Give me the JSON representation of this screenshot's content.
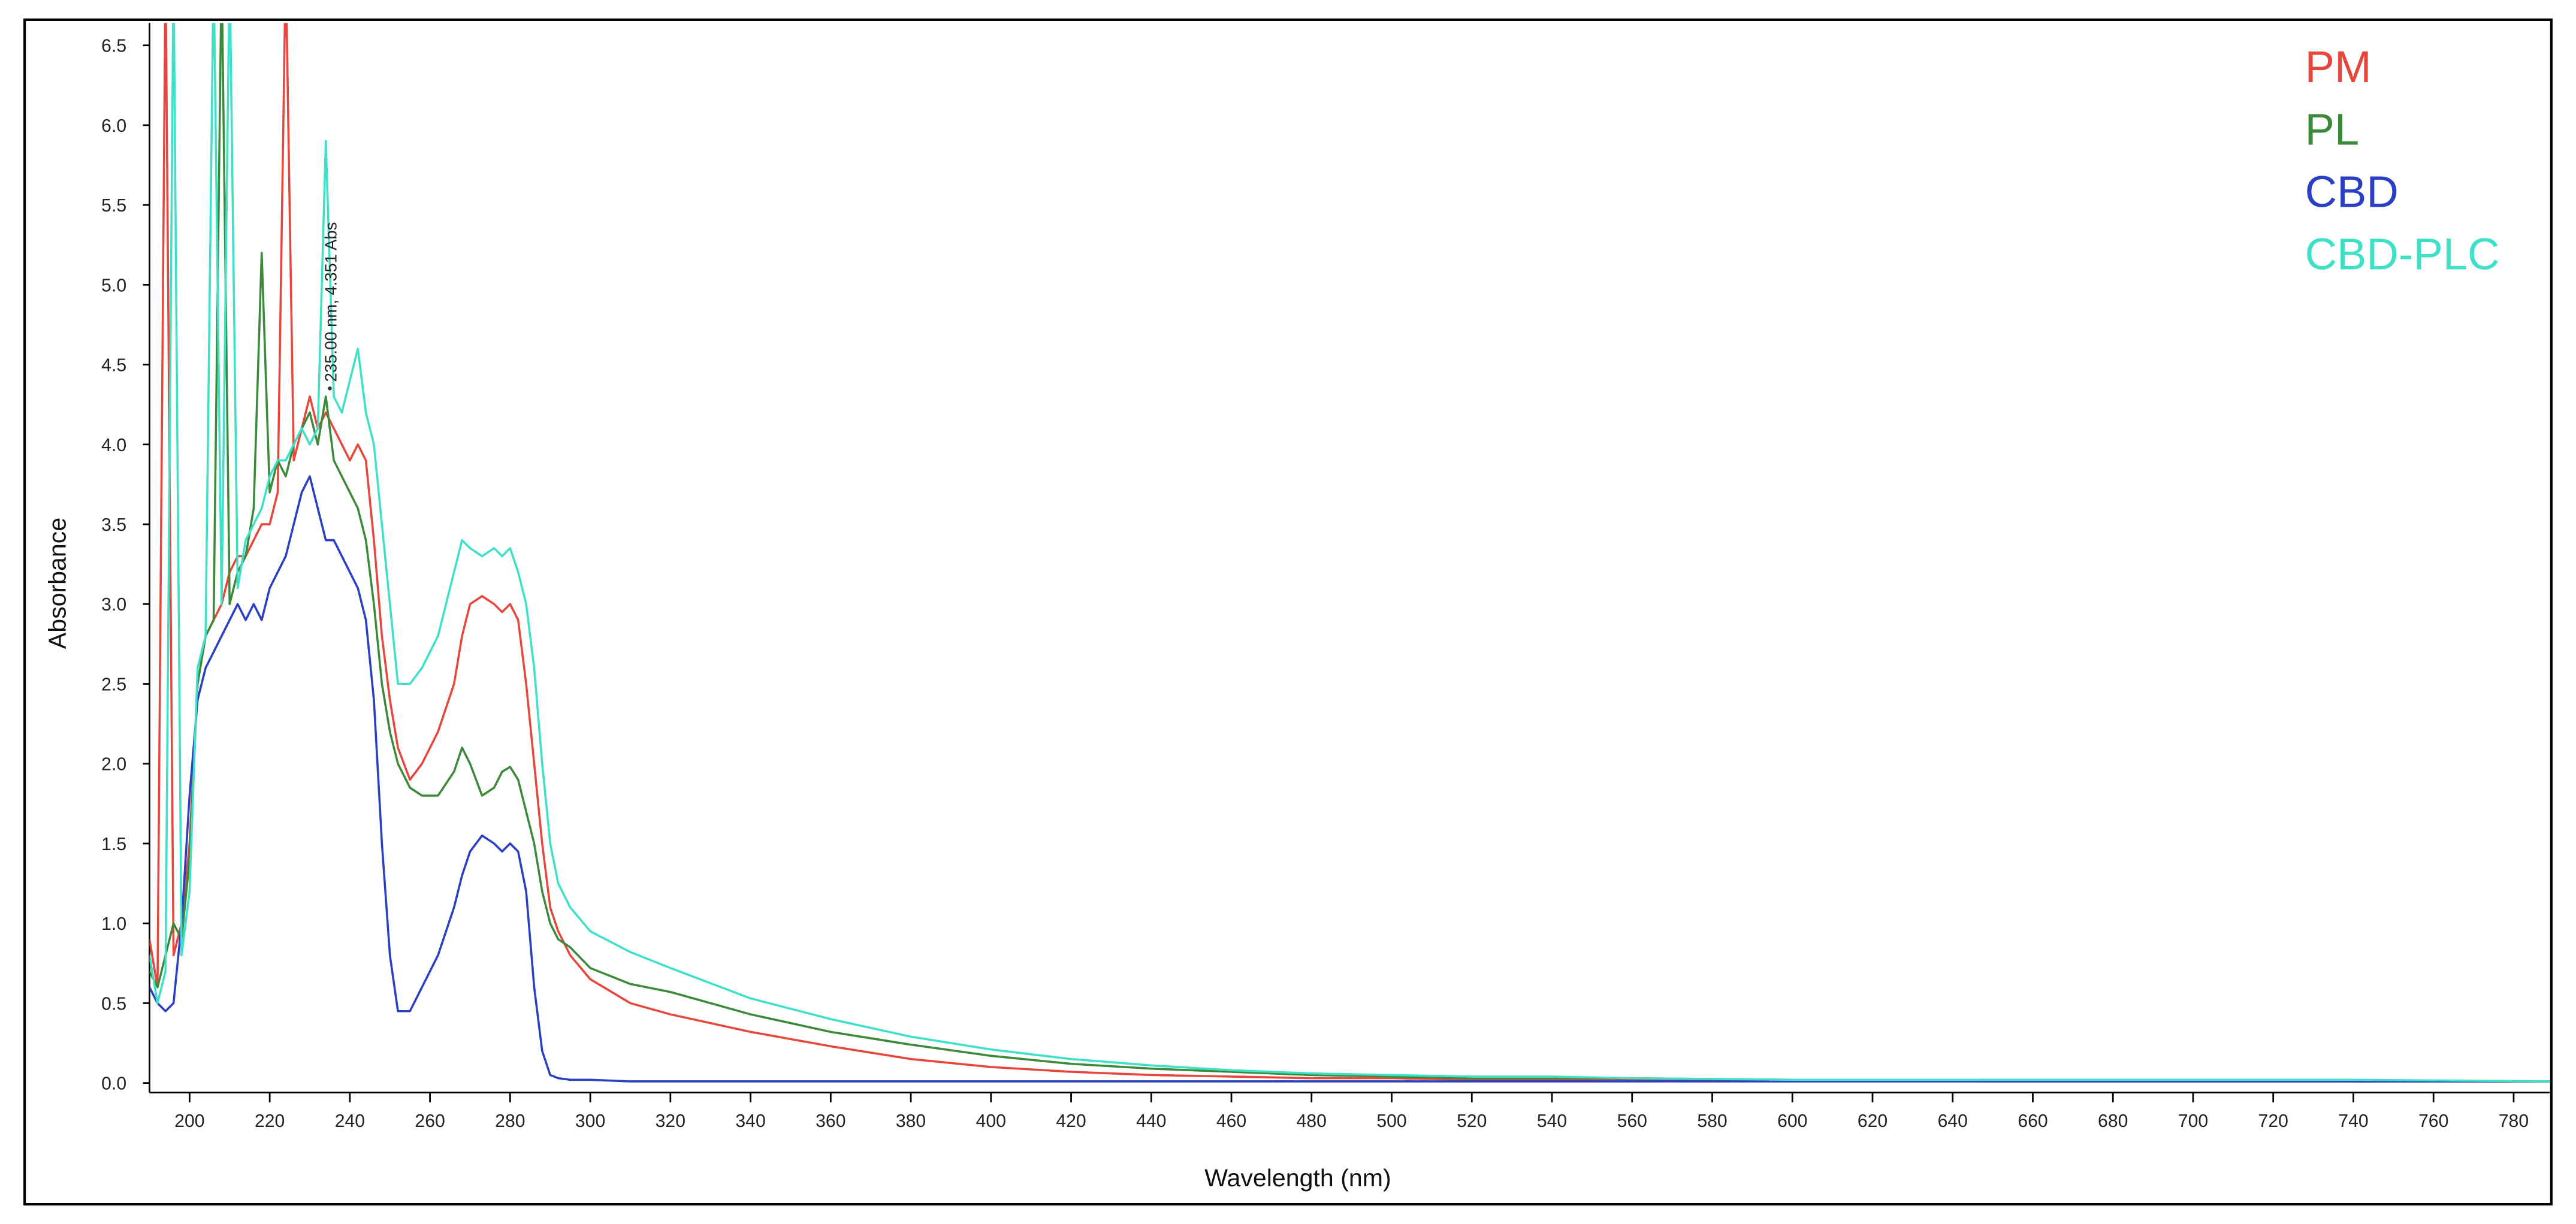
{
  "chart_data": {
    "type": "line",
    "x_label": "Wavelength (nm)",
    "y_label": "Absorbance",
    "annotation": "235.00 nm, 4.351 Abs",
    "annotation_x": 235,
    "annotation_y": 4.351,
    "x": [
      190,
      192,
      194,
      196,
      198,
      200,
      202,
      204,
      206,
      208,
      210,
      212,
      214,
      216,
      218,
      220,
      222,
      224,
      226,
      228,
      230,
      232,
      234,
      236,
      238,
      240,
      242,
      244,
      246,
      248,
      250,
      252,
      255,
      258,
      262,
      266,
      268,
      270,
      273,
      276,
      278,
      280,
      282,
      284,
      286,
      288,
      290,
      292,
      295,
      300,
      310,
      320,
      340,
      360,
      380,
      400,
      420,
      440,
      460,
      480,
      500,
      520,
      540,
      560,
      600,
      650,
      700,
      740,
      790
    ],
    "series": [
      {
        "name": "PM",
        "color": "#e8463c",
        "values": [
          0.9,
          0.6,
          7,
          0.8,
          1.0,
          1.5,
          2.5,
          2.8,
          2.9,
          3.0,
          3.2,
          3.3,
          3.3,
          3.4,
          3.5,
          3.5,
          3.7,
          7,
          3.9,
          4.1,
          4.3,
          4.1,
          4.2,
          4.1,
          4.0,
          3.9,
          4.0,
          3.9,
          3.4,
          2.8,
          2.4,
          2.1,
          1.9,
          2.0,
          2.2,
          2.5,
          2.8,
          3.0,
          3.05,
          3.0,
          2.95,
          3.0,
          2.9,
          2.5,
          2.0,
          1.5,
          1.1,
          0.95,
          0.8,
          0.65,
          0.5,
          0.43,
          0.32,
          0.23,
          0.15,
          0.1,
          0.07,
          0.05,
          0.04,
          0.03,
          0.03,
          0.02,
          0.02,
          0.02,
          0.02,
          0.01,
          0.01,
          0.01,
          0.01
        ]
      },
      {
        "name": "PL",
        "color": "#3a8a3a",
        "values": [
          0.7,
          0.6,
          0.8,
          1.0,
          0.9,
          1.4,
          2.5,
          2.8,
          2.9,
          7,
          3.0,
          3.2,
          3.3,
          3.6,
          5.2,
          3.7,
          3.9,
          3.8,
          4.0,
          4.1,
          4.2,
          4.0,
          4.3,
          3.9,
          3.8,
          3.7,
          3.6,
          3.4,
          3.0,
          2.5,
          2.2,
          2.0,
          1.85,
          1.8,
          1.8,
          1.95,
          2.1,
          2.0,
          1.8,
          1.85,
          1.95,
          1.98,
          1.9,
          1.7,
          1.5,
          1.2,
          1.0,
          0.9,
          0.85,
          0.72,
          0.62,
          0.57,
          0.43,
          0.32,
          0.24,
          0.17,
          0.12,
          0.09,
          0.07,
          0.05,
          0.04,
          0.03,
          0.03,
          0.03,
          0.02,
          0.02,
          0.02,
          0.01,
          0.01
        ]
      },
      {
        "name": "CBD",
        "color": "#2a3fc4",
        "values": [
          0.6,
          0.5,
          0.45,
          0.5,
          1.0,
          1.8,
          2.4,
          2.6,
          2.7,
          2.8,
          2.9,
          3.0,
          2.9,
          3.0,
          2.9,
          3.1,
          3.2,
          3.3,
          3.5,
          3.7,
          3.8,
          3.6,
          3.4,
          3.4,
          3.3,
          3.2,
          3.1,
          2.9,
          2.4,
          1.5,
          0.8,
          0.45,
          0.45,
          0.6,
          0.8,
          1.1,
          1.3,
          1.45,
          1.55,
          1.5,
          1.45,
          1.5,
          1.45,
          1.2,
          0.6,
          0.2,
          0.05,
          0.03,
          0.02,
          0.02,
          0.01,
          0.01,
          0.01,
          0.01,
          0.01,
          0.01,
          0.01,
          0.01,
          0.01,
          0.01,
          0.01,
          0.01,
          0.01,
          0.01,
          0.01,
          0.01,
          0.01,
          0.01,
          0.01
        ]
      },
      {
        "name": "CBD-PLC",
        "color": "#3ee0c8",
        "values": [
          0.8,
          0.5,
          0.7,
          7,
          0.8,
          1.2,
          2.6,
          2.8,
          7,
          3.0,
          7,
          3.1,
          3.4,
          3.5,
          3.6,
          3.8,
          3.9,
          3.9,
          4.0,
          4.1,
          4.0,
          4.1,
          5.9,
          4.3,
          4.2,
          4.4,
          4.6,
          4.2,
          4.0,
          3.5,
          3.0,
          2.5,
          2.5,
          2.6,
          2.8,
          3.2,
          3.4,
          3.35,
          3.3,
          3.35,
          3.3,
          3.35,
          3.2,
          3.0,
          2.6,
          2.0,
          1.5,
          1.25,
          1.1,
          0.95,
          0.82,
          0.72,
          0.53,
          0.4,
          0.29,
          0.21,
          0.15,
          0.11,
          0.08,
          0.06,
          0.05,
          0.04,
          0.04,
          0.03,
          0.02,
          0.02,
          0.02,
          0.02,
          0.01
        ]
      }
    ],
    "xlim": [
      190,
      789
    ],
    "ylim": [
      -0.06,
      6.64
    ],
    "xticks": [
      200,
      220,
      240,
      260,
      280,
      300,
      320,
      340,
      360,
      380,
      400,
      420,
      440,
      460,
      480,
      500,
      520,
      540,
      560,
      580,
      600,
      620,
      640,
      660,
      680,
      700,
      720,
      740,
      760,
      780
    ],
    "yticks": [
      {
        "value": 0,
        "label": "0.0"
      },
      0.5,
      {
        "value": 1,
        "label": "1.0"
      },
      1.5,
      {
        "value": 2,
        "label": "2.0"
      },
      2.5,
      {
        "value": 3,
        "label": "3.0"
      },
      3.5,
      {
        "value": 4,
        "label": "4.0"
      },
      4.5,
      {
        "value": 5,
        "label": "5.0"
      },
      5.5,
      {
        "value": 6,
        "label": "6.0"
      },
      6.5
    ],
    "legend": "top-right"
  }
}
